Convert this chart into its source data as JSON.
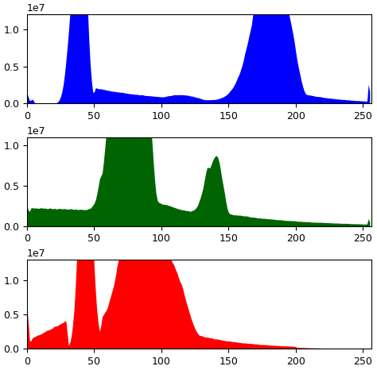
{
  "blue_color": "#0000FF",
  "green_color": "#006400",
  "red_color": "#FF0000",
  "xlim": [
    0,
    256
  ],
  "blue_ylim": [
    0,
    12000000.0
  ],
  "green_ylim": [
    0,
    11000000.0
  ],
  "red_ylim": [
    0,
    13000000.0
  ],
  "figsize": [
    4.74,
    4.66
  ],
  "dpi": 100
}
